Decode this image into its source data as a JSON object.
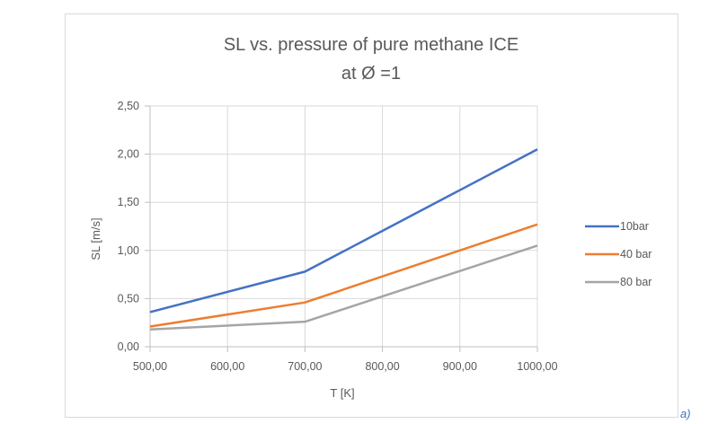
{
  "page_note": "a)",
  "chart_data": {
    "type": "line",
    "title_lines": [
      "SL vs. pressure of pure methane ICE",
      "at Ø =1"
    ],
    "xlabel": "T [K]",
    "ylabel": "SL [m/s]",
    "x": [
      500,
      700,
      1000
    ],
    "x_tick_labels": [
      "500,00",
      "600,00",
      "700,00",
      "800,00",
      "900,00",
      "1000,00"
    ],
    "x_ticks": [
      500,
      600,
      700,
      800,
      900,
      1000
    ],
    "y_tick_labels": [
      "0,00",
      "0,50",
      "1,00",
      "1,50",
      "2,00",
      "2,50"
    ],
    "y_ticks": [
      0,
      0.5,
      1.0,
      1.5,
      2.0,
      2.5
    ],
    "xlim": [
      500,
      1000
    ],
    "ylim": [
      0,
      2.5
    ],
    "grid": true,
    "legend_position": "right",
    "series": [
      {
        "name": "10bar",
        "color": "#4472c4",
        "values": [
          0.36,
          0.78,
          2.05
        ]
      },
      {
        "name": "40 bar",
        "color": "#ed7d31",
        "values": [
          0.21,
          0.46,
          1.27
        ]
      },
      {
        "name": "80 bar",
        "color": "#a5a5a5",
        "values": [
          0.18,
          0.26,
          1.05
        ]
      }
    ]
  }
}
